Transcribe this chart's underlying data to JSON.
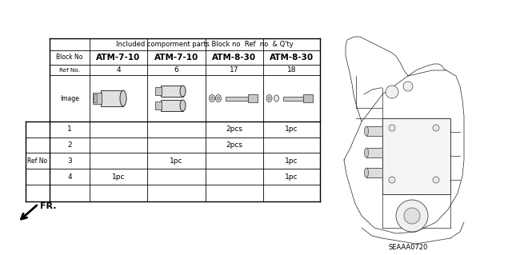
{
  "title": "Included comporment parts Block no  Ref  no  & Q'ty",
  "block_no_label": "Block No",
  "block_no_values": [
    "ATM-7-10",
    "ATM-7-10",
    "ATM-8-30",
    "ATM-8-30"
  ],
  "ref_no_label": "Ref No.",
  "ref_no_values": [
    "4",
    "6",
    "17",
    "18"
  ],
  "image_label": "Image",
  "ref_label": "Ref No",
  "ref_rows": [
    [
      "1",
      "",
      "",
      "2pcs",
      "1pc"
    ],
    [
      "2",
      "",
      "",
      "2pcs",
      ""
    ],
    [
      "3",
      "",
      "1pc",
      "",
      "1pc"
    ],
    [
      "4",
      "1pc",
      "",
      "",
      "1pc"
    ]
  ],
  "diagram_label": "SEAAA0720",
  "fr_label": "FR.",
  "bg_color": "#ffffff"
}
